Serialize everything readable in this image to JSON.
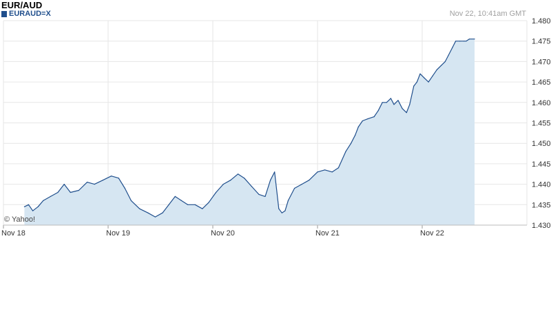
{
  "header": {
    "title": "EUR/AUD",
    "legend_label": "EURAUD=X",
    "timestamp": "Nov 22, 10:41am GMT"
  },
  "credit": "© Yahoo!",
  "colors": {
    "line": "#1f4e8c",
    "area": "#d6e6f2",
    "grid": "#e6e6e6",
    "legend": "#1f4e8c"
  },
  "chart_data": {
    "type": "area",
    "title": "EUR/AUD",
    "xlabel": "",
    "ylabel": "",
    "x_ticks": [
      "Nov 18",
      "Nov 19",
      "Nov 20",
      "Nov 21",
      "Nov 22"
    ],
    "y_ticks": [
      "1.430",
      "1.435",
      "1.440",
      "1.445",
      "1.450",
      "1.455",
      "1.460",
      "1.465",
      "1.470",
      "1.475",
      "1.480"
    ],
    "ylim": [
      1.43,
      1.48
    ],
    "xlim": [
      0,
      5
    ],
    "grid": true,
    "series": [
      {
        "name": "EURAUD=X",
        "x": [
          0.2,
          0.24,
          0.28,
          0.33,
          0.38,
          0.45,
          0.52,
          0.58,
          0.64,
          0.72,
          0.8,
          0.87,
          0.95,
          1.03,
          1.1,
          1.16,
          1.22,
          1.3,
          1.38,
          1.45,
          1.52,
          1.58,
          1.64,
          1.7,
          1.76,
          1.83,
          1.9,
          1.96,
          2.03,
          2.1,
          2.17,
          2.24,
          2.3,
          2.37,
          2.44,
          2.5,
          2.55,
          2.59,
          2.63,
          2.66,
          2.69,
          2.72,
          2.78,
          2.85,
          2.92,
          3.0,
          3.07,
          3.14,
          3.2,
          3.27,
          3.32,
          3.36,
          3.39,
          3.43,
          3.48,
          3.54,
          3.58,
          3.62,
          3.66,
          3.7,
          3.73,
          3.77,
          3.81,
          3.85,
          3.88,
          3.92,
          3.95,
          3.98,
          4.02,
          4.06,
          4.1,
          4.14,
          4.18,
          4.22,
          4.25,
          4.29,
          4.32,
          4.36,
          4.4,
          4.42,
          4.45,
          4.5
        ],
        "values": [
          1.4345,
          1.435,
          1.4335,
          1.4345,
          1.436,
          1.437,
          1.438,
          1.44,
          1.438,
          1.4385,
          1.4405,
          1.44,
          1.441,
          1.442,
          1.4415,
          1.439,
          1.436,
          1.434,
          1.433,
          1.432,
          1.433,
          1.435,
          1.437,
          1.436,
          1.435,
          1.435,
          1.434,
          1.4355,
          1.438,
          1.44,
          1.441,
          1.4425,
          1.4415,
          1.4395,
          1.4375,
          1.437,
          1.441,
          1.443,
          1.434,
          1.433,
          1.4335,
          1.436,
          1.439,
          1.44,
          1.441,
          1.443,
          1.4435,
          1.443,
          1.444,
          1.448,
          1.45,
          1.452,
          1.454,
          1.4555,
          1.456,
          1.4565,
          1.458,
          1.46,
          1.46,
          1.461,
          1.4595,
          1.4605,
          1.4585,
          1.4575,
          1.4595,
          1.464,
          1.465,
          1.467,
          1.466,
          1.465,
          1.4665,
          1.468,
          1.469,
          1.47,
          1.4715,
          1.4735,
          1.475,
          1.475,
          1.475,
          1.475,
          1.4755,
          1.4755
        ]
      }
    ]
  }
}
